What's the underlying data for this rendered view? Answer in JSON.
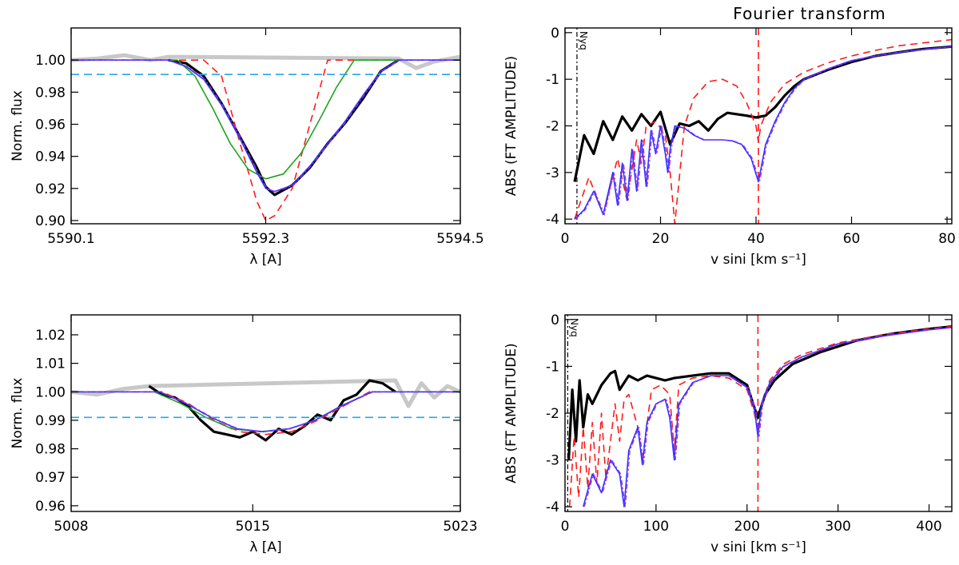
{
  "figure_title": "Fourier transform",
  "colors": {
    "observed": "#000000",
    "observed_outside": "#c8c8c8",
    "model_red": "#ff1a1a",
    "model_green": "#1fa31f",
    "model_blue": "#3333ff",
    "model_violet": "#9a2cff",
    "level_cyan": "#2aa4e8"
  },
  "chart_data": [
    {
      "id": "profile-top",
      "type": "line",
      "xlabel": "λ [A]",
      "ylabel": "Norm. flux",
      "xlim": [
        5590.1,
        5594.5
      ],
      "ylim": [
        0.898,
        1.02
      ],
      "xticks": [
        5590.1,
        5592.3,
        5594.5
      ],
      "xtick_labels": [
        "5590.1",
        "5592.3",
        "5594.5"
      ],
      "yticks": [
        0.9,
        0.92,
        0.94,
        0.96,
        0.98,
        1.0
      ],
      "ytick_labels": [
        "0.90",
        "0.92",
        "0.94",
        "0.96",
        "0.98",
        "1.00"
      ],
      "continuum_level": 0.991,
      "series": [
        {
          "role": "observed-outside",
          "color_key": "observed_outside",
          "x": [
            5590.1,
            5590.4,
            5590.7,
            5591.0,
            5591.2,
            5593.8,
            5594.0,
            5594.2,
            5594.5
          ],
          "y": [
            1.0,
            1.001,
            1.003,
            1.0,
            1.002,
            1.001,
            0.995,
            0.999,
            1.002
          ]
        },
        {
          "role": "observed",
          "color_key": "observed",
          "x": [
            5591.2,
            5591.4,
            5591.6,
            5591.8,
            5592.0,
            5592.2,
            5592.3,
            5592.4,
            5592.6,
            5592.8,
            5593.0,
            5593.2,
            5593.4,
            5593.6,
            5593.8
          ],
          "y": [
            1.0,
            0.998,
            0.99,
            0.973,
            0.953,
            0.933,
            0.921,
            0.916,
            0.922,
            0.933,
            0.948,
            0.961,
            0.976,
            0.993,
            1.0
          ]
        },
        {
          "role": "model-red-dashed",
          "color_key": "model_red",
          "dash": true,
          "x": [
            5590.1,
            5591.6,
            5591.8,
            5592.0,
            5592.2,
            5592.3,
            5592.4,
            5592.6,
            5592.8,
            5593.0,
            5594.5
          ],
          "y": [
            1.0,
            1.0,
            0.99,
            0.95,
            0.912,
            0.9,
            0.903,
            0.92,
            0.96,
            1.0,
            1.0
          ]
        },
        {
          "role": "model-green",
          "color_key": "model_green",
          "x": [
            5590.1,
            5591.3,
            5591.5,
            5591.7,
            5591.9,
            5592.1,
            5592.3,
            5592.5,
            5592.7,
            5592.9,
            5593.1,
            5593.3,
            5594.5
          ],
          "y": [
            1.0,
            1.0,
            0.99,
            0.97,
            0.948,
            0.932,
            0.926,
            0.929,
            0.942,
            0.962,
            0.983,
            1.0,
            1.0
          ]
        },
        {
          "role": "model-blue",
          "color_key": "model_blue",
          "x": [
            5590.1,
            5591.2,
            5591.4,
            5591.6,
            5591.8,
            5592.0,
            5592.2,
            5592.3,
            5592.4,
            5592.6,
            5592.8,
            5593.0,
            5593.2,
            5593.4,
            5593.6,
            5593.8,
            5594.5
          ],
          "y": [
            1.0,
            1.0,
            0.996,
            0.988,
            0.972,
            0.952,
            0.93,
            0.92,
            0.918,
            0.922,
            0.934,
            0.948,
            0.962,
            0.978,
            0.993,
            1.0,
            1.0
          ]
        },
        {
          "role": "level-cyan-dashed",
          "color_key": "level_cyan",
          "dash": true,
          "x": [
            5590.1,
            5594.5
          ],
          "y": [
            0.991,
            0.991
          ]
        }
      ]
    },
    {
      "id": "fourier-top",
      "type": "line",
      "title": "Fourier transform",
      "xlabel": "v sini [km s⁻¹]",
      "ylabel": "ABS (FT AMPLITUDE)",
      "xlim": [
        0,
        81
      ],
      "ylim": [
        -4.1,
        0.1
      ],
      "xticks": [
        0,
        20,
        40,
        60,
        80
      ],
      "xtick_labels": [
        "0",
        "20",
        "40",
        "60",
        "80"
      ],
      "yticks": [
        0,
        -1,
        -2,
        -3,
        -4
      ],
      "ytick_labels": [
        "0",
        "-1",
        "-2",
        "-3",
        "-4"
      ],
      "nyquist_label": "Nyq",
      "nyquist_x": 2.5,
      "vline_x": 40.5,
      "series": [
        {
          "role": "observed",
          "color_key": "observed",
          "x": [
            2,
            4,
            6,
            8,
            10,
            12,
            14,
            16,
            18,
            20,
            22,
            24,
            26,
            28,
            30,
            32,
            34,
            36,
            38,
            40,
            42,
            44,
            46,
            48,
            50,
            55,
            60,
            65,
            70,
            75,
            81
          ],
          "y": [
            -3.2,
            -2.2,
            -2.6,
            -1.9,
            -2.3,
            -1.8,
            -2.1,
            -1.75,
            -2.0,
            -1.7,
            -2.4,
            -1.95,
            -2.0,
            -1.9,
            -2.1,
            -1.85,
            -1.72,
            -1.75,
            -1.78,
            -1.82,
            -1.78,
            -1.6,
            -1.35,
            -1.15,
            -1.0,
            -0.8,
            -0.63,
            -0.5,
            -0.42,
            -0.35,
            -0.3
          ]
        },
        {
          "role": "model-red-dashed",
          "color_key": "model_red",
          "dash": true,
          "x": [
            2,
            5,
            8,
            11,
            13,
            15,
            16,
            17,
            19,
            21,
            22,
            23,
            25,
            27,
            30,
            33,
            36,
            38,
            40,
            40.5,
            41,
            43,
            46,
            50,
            55,
            60,
            65,
            70,
            75,
            81
          ],
          "y": [
            -4.0,
            -3.1,
            -3.9,
            -2.7,
            -3.6,
            -2.3,
            -2.8,
            -2.0,
            -1.9,
            -2.2,
            -3.0,
            -4.1,
            -2.0,
            -1.4,
            -1.05,
            -1.0,
            -1.15,
            -1.5,
            -2.0,
            -2.35,
            -2.0,
            -1.5,
            -1.1,
            -0.85,
            -0.65,
            -0.5,
            -0.38,
            -0.28,
            -0.22,
            -0.15
          ]
        },
        {
          "role": "model-blue",
          "color_key": "model_blue",
          "x": [
            2,
            4,
            6,
            8,
            10,
            11,
            12,
            13,
            14,
            15,
            16,
            17,
            18,
            19,
            20,
            21,
            21.5,
            22,
            23,
            25,
            27,
            29,
            31,
            33,
            35,
            37,
            39,
            40.5,
            42,
            44,
            46,
            48,
            50,
            55,
            60,
            65,
            70,
            75,
            81
          ],
          "y": [
            -4.0,
            -3.8,
            -3.4,
            -3.9,
            -3.0,
            -3.7,
            -2.8,
            -3.6,
            -2.5,
            -3.4,
            -2.3,
            -3.3,
            -2.1,
            -2.6,
            -2.0,
            -2.6,
            -3.0,
            -2.5,
            -2.0,
            -2.05,
            -2.2,
            -2.3,
            -2.3,
            -2.3,
            -2.32,
            -2.4,
            -2.7,
            -3.2,
            -2.4,
            -1.9,
            -1.5,
            -1.2,
            -1.0,
            -0.78,
            -0.6,
            -0.5,
            -0.42,
            -0.36,
            -0.3
          ]
        }
      ]
    },
    {
      "id": "profile-bottom",
      "type": "line",
      "xlabel": "λ [A]",
      "ylabel": "Norm. flux",
      "xlim": [
        5008,
        5023
      ],
      "ylim": [
        0.958,
        1.027
      ],
      "xticks": [
        5008,
        5015,
        5023
      ],
      "xtick_labels": [
        "5008",
        "5015",
        "5023"
      ],
      "yticks": [
        0.96,
        0.97,
        0.98,
        0.99,
        1.0,
        1.01,
        1.02
      ],
      "ytick_labels": [
        "0.96",
        "0.97",
        "0.98",
        "0.99",
        "1.00",
        "1.01",
        "1.02"
      ],
      "continuum_level": 0.991,
      "series": [
        {
          "role": "observed-outside",
          "color_key": "observed_outside",
          "x": [
            5008,
            5009,
            5010,
            5011,
            5020.5,
            5021,
            5021.5,
            5022,
            5022.5,
            5023
          ],
          "y": [
            1.0,
            0.999,
            1.001,
            1.002,
            1.004,
            0.995,
            1.003,
            0.998,
            1.002,
            1.0
          ]
        },
        {
          "role": "observed",
          "color_key": "observed",
          "x": [
            5011,
            5011.5,
            5012,
            5012.5,
            5013,
            5013.5,
            5014,
            5014.5,
            5015,
            5015.5,
            5016,
            5016.5,
            5017,
            5017.5,
            5018,
            5018.5,
            5019,
            5019.5,
            5020,
            5020.5
          ],
          "y": [
            1.002,
            0.999,
            0.998,
            0.995,
            0.99,
            0.986,
            0.985,
            0.984,
            0.986,
            0.983,
            0.987,
            0.985,
            0.988,
            0.992,
            0.99,
            0.997,
            0.999,
            1.004,
            1.003,
            1.0
          ]
        },
        {
          "role": "model-red-dashed",
          "color_key": "model_red",
          "dash": true,
          "x": [
            5008,
            5011.5,
            5012.5,
            5013.5,
            5014.5,
            5015.5,
            5016.5,
            5017.5,
            5018.5,
            5019.5,
            5023
          ],
          "y": [
            1.0,
            1.0,
            0.996,
            0.99,
            0.986,
            0.985,
            0.986,
            0.99,
            0.995,
            1.0,
            1.0
          ]
        },
        {
          "role": "model-green",
          "color_key": "model_green",
          "x": [
            5008,
            5011.2,
            5012.2,
            5013.2,
            5014.2,
            5015.3,
            5016.4,
            5017.4,
            5018.4,
            5019.6,
            5023
          ],
          "y": [
            1.0,
            1.0,
            0.996,
            0.991,
            0.987,
            0.986,
            0.987,
            0.99,
            0.995,
            1.0,
            1.0
          ]
        },
        {
          "role": "model-blue",
          "color_key": "model_blue",
          "x": [
            5008,
            5011.4,
            5012.4,
            5013.4,
            5014.4,
            5015.4,
            5016.4,
            5017.4,
            5018.4,
            5019.6,
            5023
          ],
          "y": [
            1.0,
            1.0,
            0.996,
            0.991,
            0.987,
            0.986,
            0.987,
            0.99,
            0.995,
            1.0,
            1.0
          ]
        },
        {
          "role": "level-cyan-dashed",
          "color_key": "level_cyan",
          "dash": true,
          "x": [
            5008,
            5023
          ],
          "y": [
            0.991,
            0.991
          ]
        }
      ]
    },
    {
      "id": "fourier-bottom",
      "type": "line",
      "xlabel": "v sini [km s⁻¹]",
      "ylabel": "ABS (FT AMPLITUDE)",
      "xlim": [
        0,
        425
      ],
      "ylim": [
        -4.1,
        0.1
      ],
      "xticks": [
        0,
        100,
        200,
        300,
        400
      ],
      "xtick_labels": [
        "0",
        "100",
        "200",
        "300",
        "400"
      ],
      "yticks": [
        0,
        -1,
        -2,
        -3,
        -4
      ],
      "ytick_labels": [
        "0",
        "-1",
        "-2",
        "-3",
        "-4"
      ],
      "nyquist_label": "Nyq",
      "nyquist_x": 3,
      "vline_x": 212,
      "series": [
        {
          "role": "observed",
          "color_key": "observed",
          "x": [
            4,
            8,
            12,
            16,
            20,
            25,
            30,
            40,
            50,
            55,
            60,
            70,
            80,
            90,
            100,
            110,
            120,
            140,
            160,
            180,
            200,
            205,
            210,
            212,
            215,
            220,
            230,
            250,
            280,
            320,
            360,
            400,
            425
          ],
          "y": [
            -3.0,
            -1.5,
            -2.6,
            -1.3,
            -2.3,
            -1.6,
            -1.8,
            -1.4,
            -1.15,
            -1.1,
            -1.5,
            -1.2,
            -1.3,
            -1.2,
            -1.25,
            -1.3,
            -1.25,
            -1.2,
            -1.15,
            -1.15,
            -1.4,
            -1.7,
            -2.0,
            -2.1,
            -1.9,
            -1.6,
            -1.3,
            -0.95,
            -0.7,
            -0.45,
            -0.3,
            -0.2,
            -0.15
          ]
        },
        {
          "role": "model-red-dashed",
          "color_key": "model_red",
          "dash": true,
          "x": [
            5,
            10,
            15,
            20,
            25,
            30,
            35,
            40,
            45,
            55,
            60,
            65,
            70,
            80,
            85,
            95,
            105,
            115,
            120,
            125,
            140,
            160,
            180,
            200,
            208,
            212,
            216,
            225,
            240,
            260,
            300,
            350,
            400,
            425
          ],
          "y": [
            -4.0,
            -2.5,
            -3.8,
            -2.3,
            -3.6,
            -2.2,
            -3.5,
            -2.0,
            -3.4,
            -1.8,
            -2.6,
            -1.7,
            -1.6,
            -2.3,
            -3.0,
            -1.5,
            -1.4,
            -1.6,
            -2.8,
            -1.4,
            -1.25,
            -1.2,
            -1.25,
            -1.5,
            -2.0,
            -2.4,
            -1.8,
            -1.3,
            -0.95,
            -0.75,
            -0.5,
            -0.32,
            -0.2,
            -0.15
          ]
        },
        {
          "role": "model-blue",
          "color_key": "model_blue",
          "x": [
            20,
            30,
            40,
            50,
            60,
            65,
            70,
            80,
            85,
            90,
            100,
            110,
            115,
            120,
            125,
            140,
            160,
            180,
            200,
            208,
            212,
            216,
            225,
            240,
            260,
            300,
            350,
            400,
            425
          ],
          "y": [
            -4.0,
            -3.3,
            -3.7,
            -3.0,
            -3.3,
            -4.0,
            -2.8,
            -2.3,
            -3.1,
            -2.2,
            -1.8,
            -1.7,
            -2.1,
            -3.0,
            -1.8,
            -1.35,
            -1.2,
            -1.2,
            -1.45,
            -1.9,
            -2.5,
            -1.8,
            -1.35,
            -1.0,
            -0.8,
            -0.52,
            -0.35,
            -0.22,
            -0.17
          ]
        }
      ]
    }
  ]
}
